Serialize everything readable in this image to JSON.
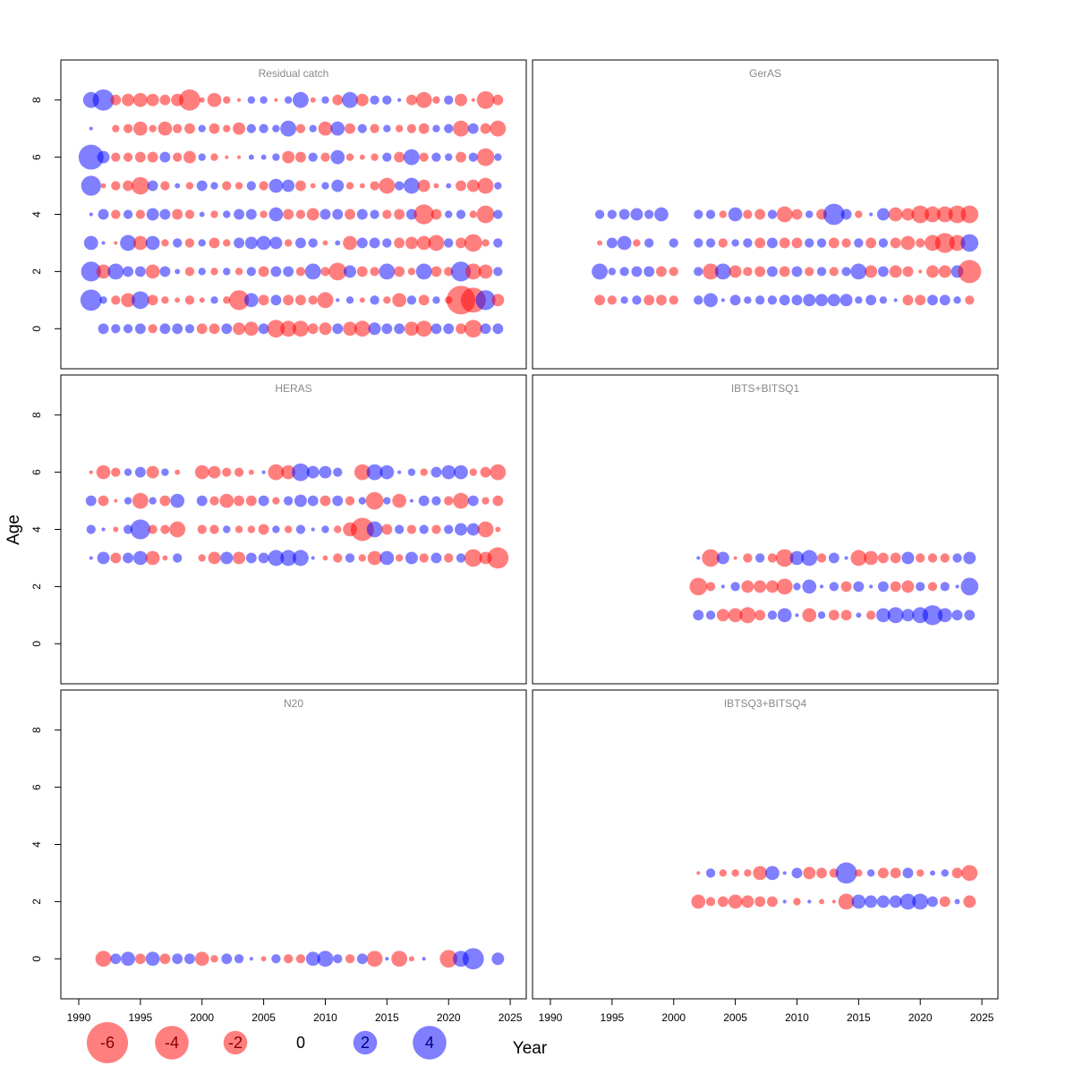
{
  "xlabel": "Year",
  "ylabel": "Age",
  "colors": {
    "negative": "#ff0000",
    "positive": "#0000ff",
    "opacity": 0.5
  },
  "legend": {
    "values": [
      -6,
      -4,
      -2,
      0,
      2,
      4
    ]
  },
  "chart_data": [
    {
      "type": "bubble",
      "title": "Residual catch",
      "x": [
        1991,
        1992,
        1993,
        1994,
        1995,
        1996,
        1997,
        1998,
        1999,
        2000,
        2001,
        2002,
        2003,
        2004,
        2005,
        2006,
        2007,
        2008,
        2009,
        2010,
        2011,
        2012,
        2013,
        2014,
        2015,
        2016,
        2017,
        2018,
        2019,
        2020,
        2021,
        2022,
        2023,
        2024
      ],
      "ages": [
        8,
        7,
        6,
        5,
        4,
        3,
        2,
        1,
        0
      ],
      "values": [
        [
          0.9,
          1.6,
          -0.4,
          -0.55,
          -0.7,
          -0.55,
          -0.4,
          -0.55,
          -1.6,
          -0.1,
          -0.7,
          -0.2,
          -0.05,
          0.2,
          0.2,
          -0.05,
          0.2,
          0.9,
          -0.1,
          0.2,
          -0.4,
          0.9,
          -0.55,
          0.3,
          0.3,
          0.05,
          -0.4,
          -0.9,
          -0.2,
          0.3,
          -0.55,
          -0.05,
          -1.1,
          -0.4
        ],
        [
          0.05,
          null,
          -0.2,
          -0.3,
          -0.7,
          -0.2,
          -0.7,
          -0.3,
          -0.4,
          0.2,
          -0.4,
          -0.2,
          -0.55,
          0.3,
          0.3,
          0.2,
          0.9,
          -0.3,
          0.2,
          -0.7,
          0.7,
          -0.4,
          0.3,
          -0.3,
          0.2,
          -0.2,
          -0.3,
          -0.4,
          0.2,
          0.3,
          -0.9,
          0.4,
          -0.4,
          -0.9
        ],
        [
          2.2,
          0.55,
          -0.3,
          -0.3,
          -0.4,
          -0.4,
          0.4,
          -0.3,
          -0.55,
          0.2,
          -0.2,
          -0.05,
          -0.05,
          0.1,
          0.1,
          0.2,
          -0.55,
          -0.4,
          0.3,
          -0.3,
          0.7,
          -0.2,
          -0.1,
          -0.2,
          0.3,
          -0.4,
          0.9,
          -0.3,
          0.3,
          0.2,
          -0.4,
          0.3,
          -1.1,
          0.2
        ],
        [
          1.4,
          -0.1,
          -0.3,
          -0.4,
          -1.1,
          0.4,
          -0.3,
          0.1,
          -0.2,
          0.4,
          0.2,
          -0.3,
          -0.2,
          0.3,
          -0.3,
          0.7,
          0.55,
          -0.4,
          -0.1,
          0.2,
          0.55,
          -0.2,
          -0.1,
          -0.3,
          -0.9,
          0.3,
          0.9,
          -0.55,
          -0.1,
          0.1,
          -0.4,
          -0.55,
          -0.9,
          0.2
        ],
        [
          0.05,
          0.4,
          -0.3,
          0.3,
          -0.3,
          0.55,
          0.4,
          -0.4,
          -0.3,
          0.1,
          -0.2,
          0.2,
          0.4,
          0.4,
          -0.2,
          0.7,
          -0.4,
          -0.3,
          -0.55,
          0.4,
          0.4,
          -0.4,
          0.4,
          0.3,
          -0.3,
          -0.4,
          0.4,
          -1.4,
          -0.4,
          0.2,
          0.3,
          -0.2,
          -1.1,
          0.3
        ],
        [
          0.7,
          0.05,
          -0.05,
          0.9,
          -0.7,
          0.7,
          -0.2,
          0.3,
          -0.3,
          0.2,
          -0.4,
          -0.2,
          0.4,
          0.55,
          0.7,
          0.55,
          -0.2,
          0.4,
          0.3,
          -0.1,
          0.1,
          -0.7,
          0.4,
          0.4,
          0.3,
          -0.4,
          -0.55,
          -0.7,
          -0.9,
          0.3,
          -0.4,
          -1.1,
          -0.2,
          0.3
        ],
        [
          1.4,
          -0.7,
          0.9,
          0.4,
          0.4,
          -0.7,
          0.4,
          0.1,
          -0.3,
          0.2,
          -0.2,
          0.2,
          -0.2,
          0.3,
          -0.4,
          0.4,
          0.4,
          -0.3,
          0.9,
          -0.3,
          -1.1,
          0.55,
          -0.4,
          -0.3,
          0.9,
          -0.4,
          -0.2,
          0.9,
          -0.4,
          -0.3,
          1.4,
          -0.9,
          -0.7,
          0.3
        ],
        [
          1.6,
          0.2,
          -0.3,
          -0.7,
          1.1,
          -0.4,
          -0.2,
          -0.1,
          -0.3,
          -0.1,
          0.2,
          -0.2,
          -1.4,
          0.7,
          -0.4,
          0.4,
          -0.4,
          -0.4,
          -0.3,
          -0.9,
          0.05,
          0.2,
          -0.1,
          0.3,
          -0.2,
          -0.7,
          0.3,
          -0.4,
          0.2,
          -0.2,
          -2.9,
          -2.2,
          1.4,
          -0.55
        ],
        [
          null,
          0.4,
          0.3,
          0.3,
          0.4,
          -0.3,
          0.4,
          0.4,
          0.3,
          -0.4,
          -0.4,
          0.4,
          -0.55,
          -0.7,
          0.4,
          -1.1,
          -0.9,
          -0.9,
          -0.4,
          -0.55,
          0.4,
          -0.7,
          -0.9,
          0.55,
          0.4,
          0.4,
          -0.7,
          -0.9,
          0.4,
          0.4,
          -0.4,
          -1.1,
          0.4,
          0.4
        ]
      ],
      "xlim": [
        1988.55,
        2026.3
      ],
      "ylim": [
        -1.4,
        9.4
      ],
      "yticks": [
        0,
        2,
        4,
        6,
        8
      ]
    },
    {
      "type": "bubble",
      "title": "GerAS",
      "x": [
        1994,
        1995,
        1996,
        1997,
        1998,
        1999,
        2000,
        2001,
        2002,
        2003,
        2004,
        2005,
        2006,
        2007,
        2008,
        2009,
        2010,
        2011,
        2012,
        2013,
        2014,
        2015,
        2016,
        2017,
        2018,
        2019,
        2020,
        2021,
        2022,
        2023,
        2024
      ],
      "ages": [
        4,
        3,
        2,
        1
      ],
      "values": [
        [
          0.3,
          0.3,
          0.4,
          0.55,
          0.3,
          0.7,
          null,
          null,
          0.3,
          0.3,
          -0.2,
          0.7,
          -0.3,
          -0.4,
          0.3,
          -0.9,
          -0.4,
          0.2,
          -0.4,
          1.6,
          0.4,
          -0.2,
          0.05,
          0.55,
          -0.7,
          -0.55,
          -1.1,
          -0.9,
          -0.9,
          -1.1,
          -1.1
        ],
        [
          -0.1,
          0.4,
          0.7,
          -0.2,
          0.3,
          null,
          0.3,
          null,
          0.3,
          0.3,
          -0.3,
          0.2,
          0.3,
          -0.4,
          0.4,
          -0.4,
          -0.4,
          0.3,
          0.3,
          -0.4,
          -0.3,
          0.3,
          -0.4,
          0.3,
          -0.4,
          -0.7,
          -0.3,
          -0.9,
          -1.4,
          -0.9,
          1.1
        ],
        [
          0.9,
          0.2,
          0.3,
          0.4,
          0.4,
          -0.4,
          -0.3,
          null,
          0.3,
          -0.9,
          0.9,
          -0.55,
          -0.3,
          -0.4,
          0.4,
          -0.4,
          0.4,
          -0.3,
          0.3,
          -0.3,
          0.3,
          0.9,
          -0.55,
          0.4,
          -0.55,
          -0.4,
          -0.05,
          -0.55,
          -0.55,
          0.55,
          -1.9
        ],
        [
          -0.4,
          -0.3,
          0.2,
          0.3,
          -0.4,
          -0.4,
          -0.3,
          null,
          0.3,
          0.7,
          0.05,
          0.4,
          0.2,
          0.3,
          0.3,
          0.4,
          0.4,
          0.55,
          0.55,
          0.55,
          0.55,
          0.2,
          0.4,
          0.2,
          0.05,
          -0.4,
          -0.4,
          0.4,
          0.4,
          0.2,
          -0.3
        ]
      ],
      "xlim": [
        1988.55,
        2026.3
      ],
      "ylim": [
        -1.4,
        9.4
      ]
    },
    {
      "type": "bubble",
      "title": "HERAS",
      "x": [
        1991,
        1992,
        1993,
        1994,
        1995,
        1996,
        1997,
        1998,
        1999,
        2000,
        2001,
        2002,
        2003,
        2004,
        2005,
        2006,
        2007,
        2008,
        2009,
        2010,
        2011,
        2012,
        2013,
        2014,
        2015,
        2016,
        2017,
        2018,
        2019,
        2020,
        2021,
        2022,
        2023,
        2024
      ],
      "ages": [
        6,
        5,
        4,
        3
      ],
      "values": [
        [
          -0.05,
          -0.7,
          -0.3,
          0.2,
          0.4,
          -0.55,
          0.2,
          -0.1,
          null,
          -0.7,
          -0.55,
          -0.3,
          -0.3,
          -0.1,
          0.05,
          -0.9,
          -0.7,
          1.1,
          0.55,
          0.55,
          0.3,
          null,
          -0.9,
          0.9,
          0.7,
          0.05,
          0.2,
          -0.2,
          0.4,
          0.7,
          0.7,
          -0.2,
          -0.4,
          -0.9
        ],
        [
          0.4,
          -0.4,
          -0.05,
          0.2,
          -0.9,
          0.2,
          -0.4,
          0.7,
          null,
          0.4,
          -0.3,
          -0.7,
          -0.4,
          -0.4,
          0.4,
          -0.2,
          0.3,
          0.55,
          0.4,
          -0.4,
          0.4,
          -0.3,
          0.2,
          -1.1,
          0.2,
          -0.7,
          0.05,
          0.4,
          0.3,
          -0.3,
          -0.9,
          0.4,
          -0.2,
          -0.4
        ],
        [
          0.3,
          0.05,
          -0.1,
          0.3,
          1.4,
          -0.3,
          -0.3,
          -0.9,
          null,
          -0.3,
          -0.3,
          0.2,
          -0.2,
          -0.2,
          -0.4,
          0.2,
          -0.2,
          0.3,
          0.05,
          0.2,
          -0.2,
          -0.7,
          -1.9,
          0.9,
          -0.4,
          0.3,
          -0.3,
          0.3,
          -0.3,
          0.3,
          0.55,
          0.55,
          -0.9,
          -0.1
        ],
        [
          0.05,
          0.55,
          -0.4,
          0.4,
          0.7,
          -0.7,
          -0.1,
          0.3,
          null,
          -0.2,
          -0.55,
          0.55,
          -0.55,
          0.4,
          0.4,
          0.9,
          0.9,
          0.9,
          0.05,
          -0.1,
          -0.3,
          0.3,
          -0.2,
          -0.7,
          0.7,
          -0.2,
          0.55,
          -0.3,
          0.4,
          -0.3,
          0.3,
          -1.1,
          -0.55,
          -1.6
        ]
      ],
      "xlim": [
        1988.55,
        2026.3
      ],
      "ylim": [
        -1.4,
        9.4
      ],
      "yticks": [
        0,
        2,
        4,
        6,
        8
      ]
    },
    {
      "type": "bubble",
      "title": "IBTS+BITSQ1",
      "x": [
        2002,
        2003,
        2004,
        2005,
        2006,
        2007,
        2008,
        2009,
        2010,
        2011,
        2012,
        2013,
        2014,
        2015,
        2016,
        2017,
        2018,
        2019,
        2020,
        2021,
        2022,
        2023,
        2024
      ],
      "ages": [
        3,
        2,
        1
      ],
      "values": [
        [
          0.05,
          -1.1,
          0.55,
          -0.05,
          -0.3,
          0.3,
          -0.3,
          -1.1,
          0.7,
          0.9,
          -0.3,
          0.4,
          0.05,
          -0.9,
          -0.7,
          -0.4,
          -0.4,
          0.55,
          -0.3,
          -0.3,
          -0.3,
          0.3,
          0.55
        ],
        [
          -1.1,
          -0.3,
          0.05,
          0.3,
          -0.55,
          -0.55,
          -0.55,
          -0.9,
          0.2,
          0.7,
          0.05,
          0.3,
          -0.4,
          0.4,
          0.05,
          0.4,
          -0.4,
          -0.55,
          0.3,
          -0.3,
          0.3,
          0.05,
          1.1
        ],
        [
          0.4,
          0.3,
          -0.55,
          -0.7,
          -0.9,
          -0.4,
          0.3,
          0.7,
          0.05,
          -0.7,
          0.2,
          -0.4,
          -0.4,
          0.1,
          -0.3,
          0.7,
          0.9,
          0.55,
          0.9,
          1.4,
          0.7,
          0.4,
          0.4
        ]
      ],
      "xlim": [
        1988.55,
        2026.3
      ],
      "ylim": [
        -1.4,
        9.4
      ]
    },
    {
      "type": "bubble",
      "title": "N20",
      "x": [
        1992,
        1993,
        1994,
        1995,
        1996,
        1997,
        1998,
        1999,
        2000,
        2001,
        2002,
        2003,
        2004,
        2005,
        2006,
        2007,
        2008,
        2009,
        2010,
        2011,
        2012,
        2013,
        2014,
        2015,
        2016,
        2017,
        2018,
        2019,
        2020,
        2021,
        2022,
        2023,
        2024
      ],
      "ages": [
        0
      ],
      "values": [
        [
          -0.9,
          0.4,
          0.7,
          -0.4,
          0.7,
          -0.4,
          0.4,
          0.4,
          -0.7,
          -0.2,
          0.4,
          0.3,
          0.05,
          -0.1,
          0.3,
          -0.3,
          -0.3,
          0.7,
          0.9,
          0.3,
          -0.3,
          0.4,
          -0.9,
          0.05,
          -0.9,
          -0.1,
          0.05,
          null,
          -1.1,
          0.9,
          1.6,
          null,
          0.55
        ]
      ],
      "xlim": [
        1988.55,
        2026.3
      ],
      "ylim": [
        -1.4,
        9.4
      ],
      "yticks": [
        0,
        2,
        4,
        6,
        8
      ],
      "xticks": [
        1990,
        1995,
        2000,
        2005,
        2010,
        2015,
        2020,
        2025
      ]
    },
    {
      "type": "bubble",
      "title": "IBTSQ3+BITSQ4",
      "x": [
        2002,
        2003,
        2004,
        2005,
        2006,
        2007,
        2008,
        2009,
        2010,
        2011,
        2012,
        2013,
        2014,
        2015,
        2016,
        2017,
        2018,
        2019,
        2020,
        2021,
        2022,
        2023,
        2024
      ],
      "ages": [
        3,
        2
      ],
      "values": [
        [
          -0.05,
          0.3,
          -0.2,
          -0.2,
          -0.2,
          -0.7,
          0.7,
          0.05,
          0.4,
          -0.55,
          -0.4,
          -0.3,
          1.6,
          -0.2,
          0.2,
          -0.4,
          -0.4,
          0.4,
          -0.2,
          0.1,
          0.2,
          -0.4,
          -0.9
        ],
        [
          -0.7,
          -0.3,
          -0.4,
          -0.7,
          -0.55,
          -0.4,
          -0.4,
          0.05,
          -0.2,
          0.05,
          -0.1,
          -0.05,
          -0.9,
          0.7,
          0.55,
          0.55,
          0.55,
          0.9,
          0.9,
          0.4,
          -0.4,
          0.1,
          -0.55
        ]
      ],
      "xlim": [
        1988.55,
        2026.3
      ],
      "ylim": [
        -1.4,
        9.4
      ],
      "xticks": [
        1990,
        1995,
        2000,
        2005,
        2010,
        2015,
        2020,
        2025
      ]
    }
  ]
}
